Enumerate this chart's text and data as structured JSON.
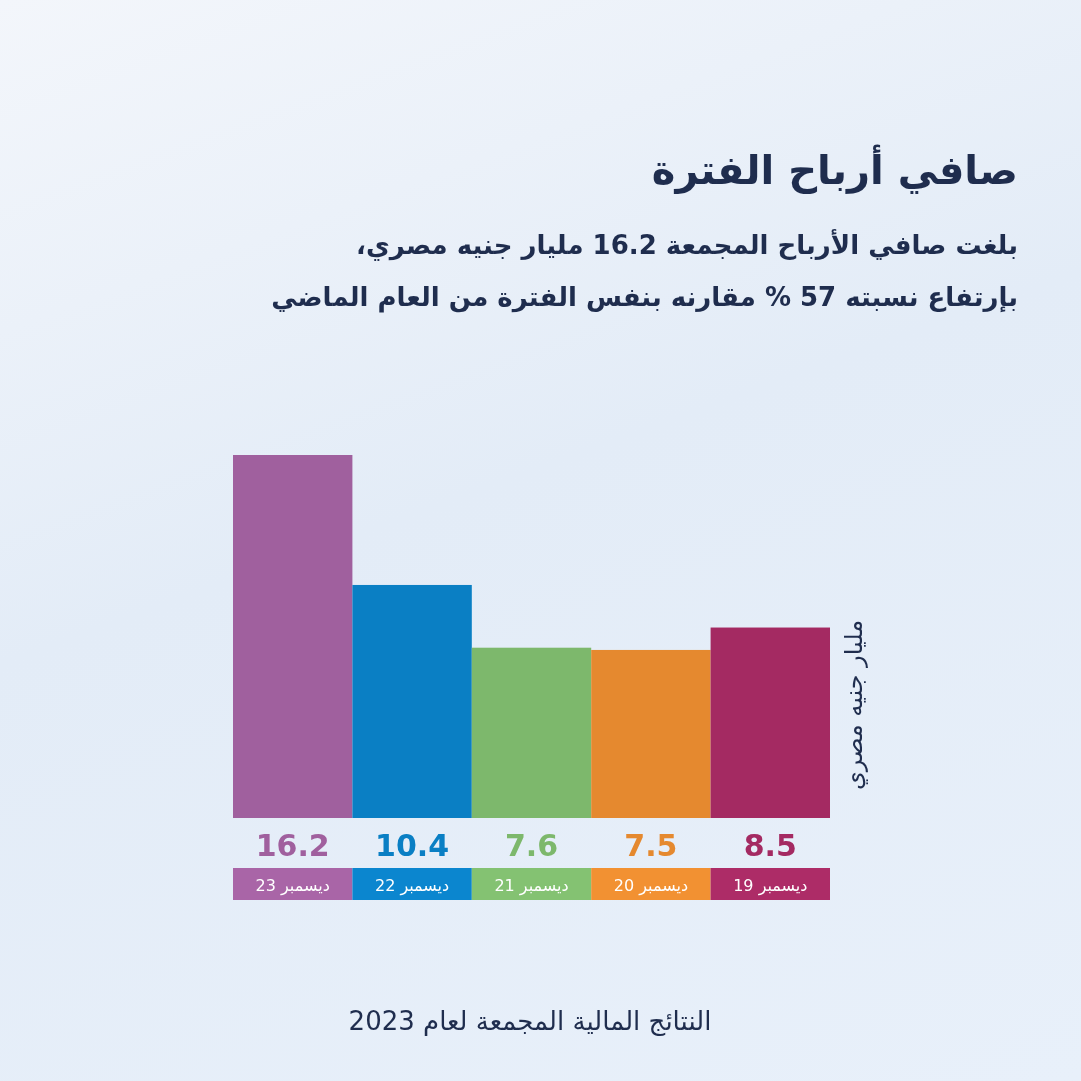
{
  "chart_data": {
    "type": "bar",
    "title": "صافي أرباح الفترة",
    "subtitle": "بلغت صافي الأرباح المجمعة 16.2 مليار جنيه مصري،\nبإرتفاع نسبته 57 % مقارنه بنفس الفترة من العام الماضي",
    "ylabel": "مليار جنيه مصري",
    "categories": [
      "ديسمبر 23",
      "ديسمبر 22",
      "ديسمبر 21",
      "ديسمبر 20",
      "ديسمبر 19"
    ],
    "values": [
      16.2,
      10.4,
      7.6,
      7.5,
      8.5
    ],
    "colors": [
      "#a0609e",
      "#0a7fc4",
      "#7db86c",
      "#e5892f",
      "#a42a62"
    ],
    "data_labels": true,
    "annotations": [
      "النتائج المالية المجمعة لعام 2023"
    ]
  }
}
